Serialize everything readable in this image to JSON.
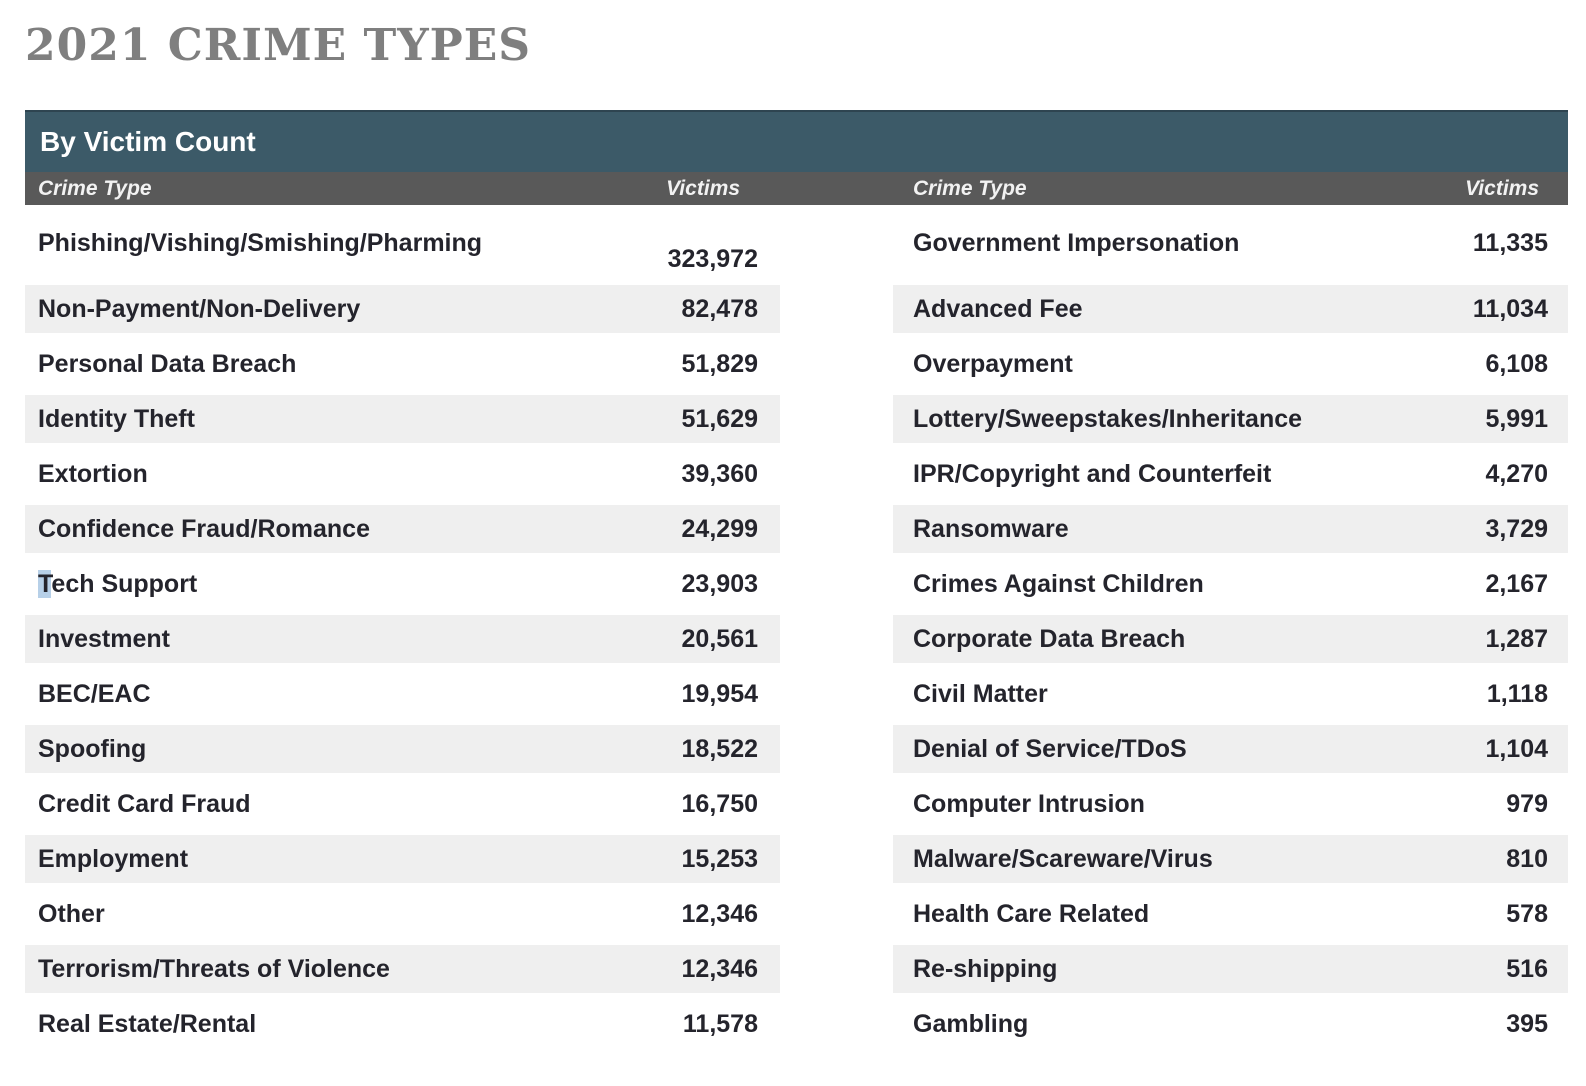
{
  "page_title": "2021 CRIME TYPES",
  "table": {
    "title": "By Victim Count",
    "column_headers": {
      "left_crime_type": "Crime Type",
      "left_victims": "Victims",
      "right_crime_type": "Crime Type",
      "right_victims": "Victims"
    },
    "left_rows": [
      {
        "crime_type": "Phishing/Vishing/Smishing/Pharming",
        "victims": "323,972"
      },
      {
        "crime_type": "Non-Payment/Non-Delivery",
        "victims": "82,478"
      },
      {
        "crime_type": "Personal Data Breach",
        "victims": "51,829"
      },
      {
        "crime_type": "Identity Theft",
        "victims": "51,629"
      },
      {
        "crime_type": "Extortion",
        "victims": "39,360"
      },
      {
        "crime_type": "Confidence Fraud/Romance",
        "victims": "24,299"
      },
      {
        "crime_type": "Tech Support",
        "victims": "23,903",
        "highlight_first_letter": true
      },
      {
        "crime_type": "Investment",
        "victims": "20,561"
      },
      {
        "crime_type": "BEC/EAC",
        "victims": "19,954"
      },
      {
        "crime_type": "Spoofing",
        "victims": "18,522"
      },
      {
        "crime_type": "Credit Card Fraud",
        "victims": "16,750"
      },
      {
        "crime_type": "Employment",
        "victims": "15,253"
      },
      {
        "crime_type": "Other",
        "victims": "12,346"
      },
      {
        "crime_type": "Terrorism/Threats of Violence",
        "victims": "12,346"
      },
      {
        "crime_type": "Real Estate/Rental",
        "victims": "11,578"
      }
    ],
    "right_rows": [
      {
        "crime_type": "Government Impersonation",
        "victims": "11,335"
      },
      {
        "crime_type": "Advanced Fee",
        "victims": "11,034"
      },
      {
        "crime_type": "Overpayment",
        "victims": "6,108"
      },
      {
        "crime_type": "Lottery/Sweepstakes/Inheritance",
        "victims": "5,991"
      },
      {
        "crime_type": "IPR/Copyright and Counterfeit",
        "victims": "4,270"
      },
      {
        "crime_type": "Ransomware",
        "victims": "3,729"
      },
      {
        "crime_type": "Crimes Against Children",
        "victims": "2,167"
      },
      {
        "crime_type": "Corporate Data Breach",
        "victims": "1,287"
      },
      {
        "crime_type": "Civil Matter",
        "victims": "1,118"
      },
      {
        "crime_type": "Denial of Service/TDoS",
        "victims": "1,104"
      },
      {
        "crime_type": "Computer Intrusion",
        "victims": "979"
      },
      {
        "crime_type": "Malware/Scareware/Virus",
        "victims": "810"
      },
      {
        "crime_type": "Health Care Related",
        "victims": "578"
      },
      {
        "crime_type": "Re-shipping",
        "victims": "516"
      },
      {
        "crime_type": "Gambling",
        "victims": "395"
      }
    ],
    "colors": {
      "header_bg": "#3c5a68",
      "subheader_bg": "#595959",
      "stripe_bg": "#efefef",
      "title_color": "#7f7f7f",
      "text_color": "#24242c",
      "selection_bg": "#b7d0e8"
    }
  }
}
